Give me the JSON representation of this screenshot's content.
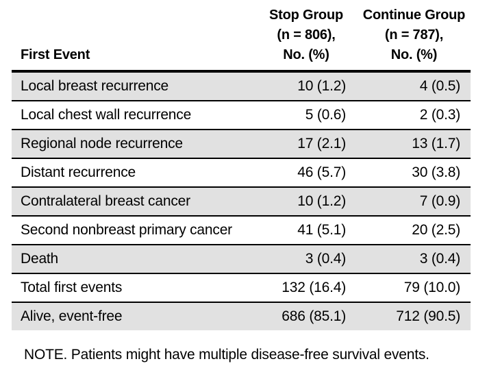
{
  "table": {
    "columns": [
      {
        "id": "first_event",
        "header_lines": [
          "First Event"
        ]
      },
      {
        "id": "stop_group",
        "header_lines": [
          "Stop Group",
          "(n = 806),",
          "No. (%)"
        ]
      },
      {
        "id": "continue_group",
        "header_lines": [
          "Continue Group",
          "(n = 787),",
          "No. (%)"
        ]
      }
    ],
    "rows": [
      {
        "event": "Local breast recurrence",
        "stop": "10 (1.2)",
        "continue": "4 (0.5)",
        "shaded": true
      },
      {
        "event": "Local chest wall recurrence",
        "stop": "5 (0.6)",
        "continue": "2 (0.3)",
        "shaded": false
      },
      {
        "event": "Regional node recurrence",
        "stop": "17 (2.1)",
        "continue": "13 (1.7)",
        "shaded": true
      },
      {
        "event": "Distant recurrence",
        "stop": "46 (5.7)",
        "continue": "30 (3.8)",
        "shaded": false
      },
      {
        "event": "Contralateral breast cancer",
        "stop": "10 (1.2)",
        "continue": "7 (0.9)",
        "shaded": true
      },
      {
        "event": "Second nonbreast primary cancer",
        "stop": "41 (5.1)",
        "continue": "20 (2.5)",
        "shaded": false
      },
      {
        "event": "Death",
        "stop": "3 (0.4)",
        "continue": "3 (0.4)",
        "shaded": true
      },
      {
        "event": "Total first events",
        "stop": "132 (16.4)",
        "continue": "79 (10.0)",
        "shaded": false
      },
      {
        "event": "Alive, event-free",
        "stop": "686 (85.1)",
        "continue": "712 (90.5)",
        "shaded": true
      }
    ],
    "colors": {
      "shaded_row": "#e1e1e1",
      "rule": "#000000",
      "text": "#000000"
    }
  },
  "note": "NOTE. Patients might have multiple disease-free survival events."
}
